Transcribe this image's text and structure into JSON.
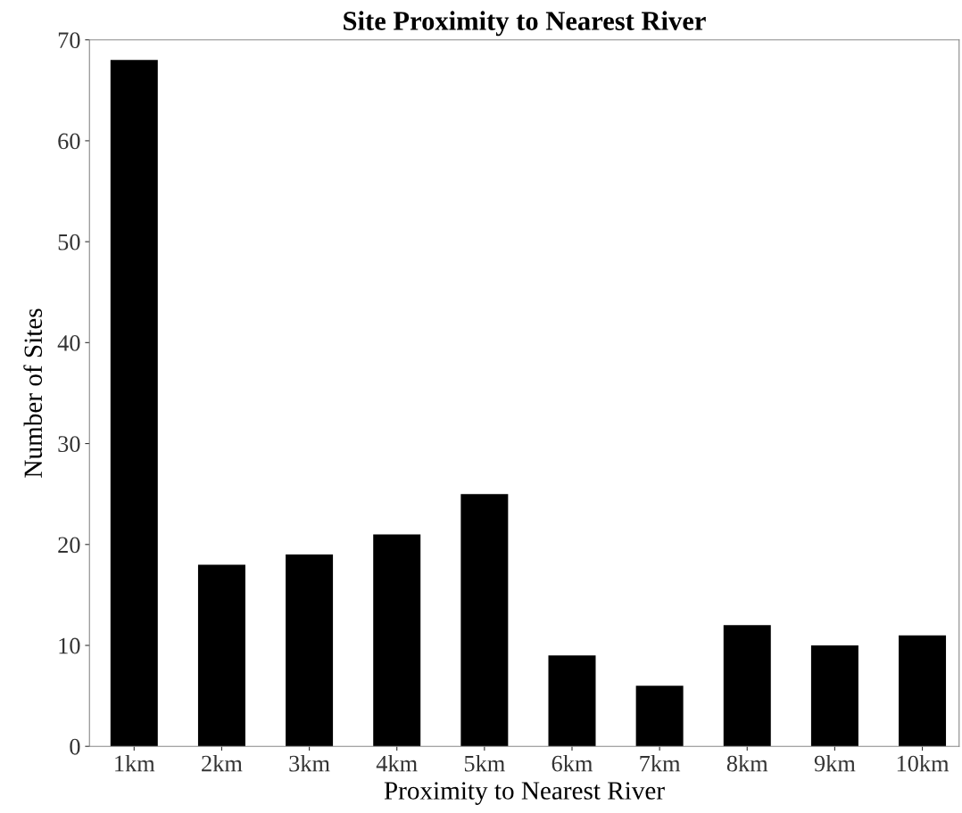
{
  "chart_data": {
    "type": "bar",
    "title": "Site Proximity to Nearest River",
    "xlabel": "Proximity to Nearest River",
    "ylabel": "Number of Sites",
    "categories": [
      "1km",
      "2km",
      "3km",
      "4km",
      "5km",
      "6km",
      "7km",
      "8km",
      "9km",
      "10km"
    ],
    "values": [
      68,
      18,
      19,
      21,
      25,
      9,
      6,
      12,
      10,
      11
    ],
    "color": "#000000",
    "ylim": [
      0,
      70
    ],
    "yticks": [
      0,
      10,
      20,
      30,
      40,
      50,
      60,
      70
    ],
    "grid": false,
    "legend": false
  }
}
